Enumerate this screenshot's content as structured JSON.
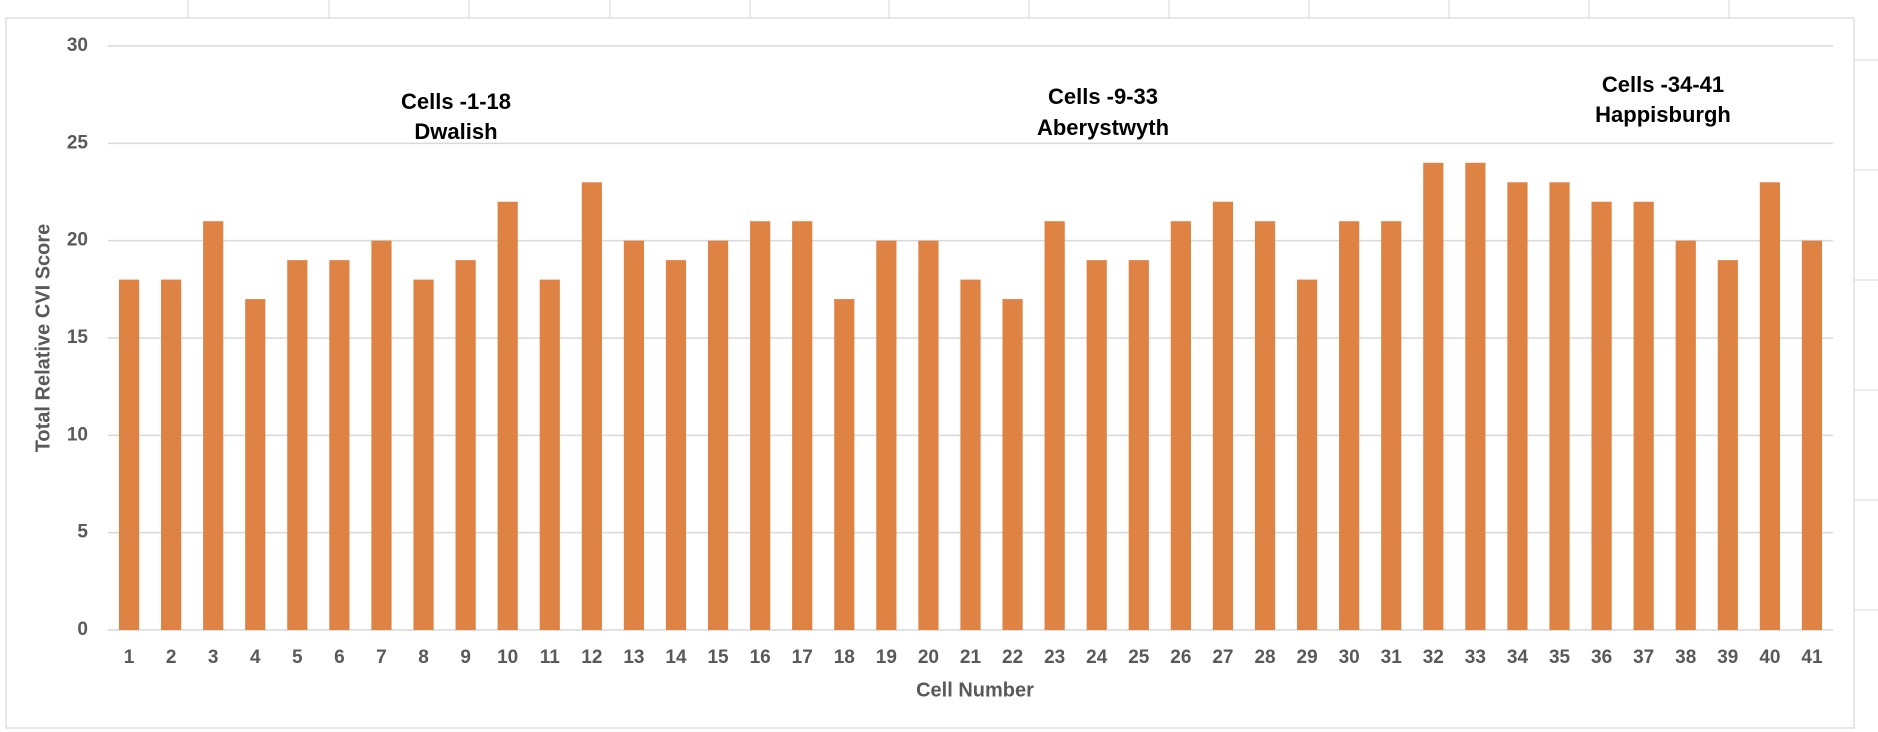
{
  "chart_data": {
    "type": "bar",
    "x_label": "Cell Number",
    "y_label": "Total Relative CVI Score",
    "categories": [
      "1",
      "2",
      "3",
      "4",
      "5",
      "6",
      "7",
      "8",
      "9",
      "10",
      "11",
      "12",
      "13",
      "14",
      "15",
      "16",
      "17",
      "18",
      "19",
      "20",
      "21",
      "22",
      "23",
      "24",
      "25",
      "26",
      "27",
      "28",
      "29",
      "30",
      "31",
      "32",
      "33",
      "34",
      "35",
      "36",
      "37",
      "38",
      "39",
      "40",
      "41"
    ],
    "values": [
      18,
      18,
      21,
      17,
      19,
      19,
      20,
      18,
      19,
      22,
      18,
      23,
      20,
      19,
      20,
      21,
      21,
      17,
      20,
      20,
      18,
      17,
      21,
      19,
      19,
      21,
      22,
      21,
      18,
      21,
      21,
      24,
      24,
      23,
      23,
      22,
      22,
      20,
      19,
      23,
      20
    ],
    "color": "#df8344",
    "ylim": [
      0,
      30
    ],
    "yticks": [
      0,
      5,
      10,
      15,
      20,
      25,
      30
    ],
    "grid": true,
    "annotations": [
      [
        "Cells -1-18",
        "Dwalish"
      ],
      [
        "Cells -9-33",
        "Aberystwyth"
      ],
      [
        "Cells -34-41",
        "Happisburgh"
      ]
    ]
  }
}
